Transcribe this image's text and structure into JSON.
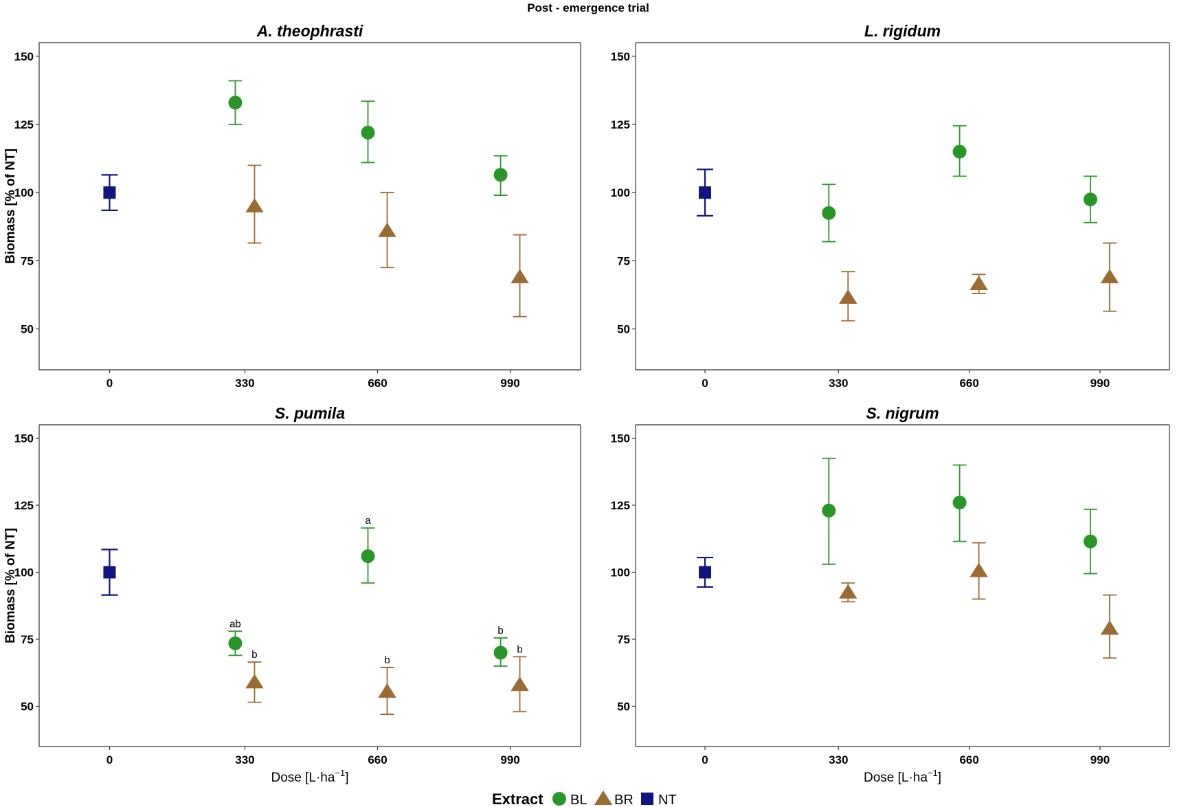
{
  "figure": {
    "title": "Post - emergence trial",
    "x_axis_label": "Dose",
    "x_axis_unit": "[L·ha",
    "x_axis_unit_exp": "−1",
    "x_axis_unit_close": "]",
    "y_axis_label": "Biomass [% of NT]"
  },
  "legend": {
    "title": "Extract",
    "items": [
      {
        "label": "BL",
        "shape": "circle",
        "color": "#2a9629"
      },
      {
        "label": "BR",
        "shape": "triangle",
        "color": "#9a6b33"
      },
      {
        "label": "NT",
        "shape": "square",
        "color": "#10157f"
      }
    ]
  },
  "chart_data": [
    {
      "type": "scatter",
      "title": "A. theophrasti",
      "categories": [
        "0",
        "330",
        "660",
        "990"
      ],
      "ylim": [
        35,
        155
      ],
      "yticks": [
        50,
        75,
        100,
        125,
        150
      ],
      "series": [
        {
          "name": "NT",
          "points": [
            {
              "x": "0",
              "y": 100,
              "lo": 93.5,
              "hi": 106.5
            }
          ]
        },
        {
          "name": "BL",
          "points": [
            {
              "x": "330",
              "y": 133,
              "lo": 125,
              "hi": 141
            },
            {
              "x": "660",
              "y": 122,
              "lo": 111,
              "hi": 133.5
            },
            {
              "x": "990",
              "y": 106.5,
              "lo": 99,
              "hi": 113.5
            }
          ]
        },
        {
          "name": "BR",
          "points": [
            {
              "x": "330",
              "y": 95,
              "lo": 81.5,
              "hi": 110
            },
            {
              "x": "660",
              "y": 86,
              "lo": 72.5,
              "hi": 100
            },
            {
              "x": "990",
              "y": 69,
              "lo": 54.5,
              "hi": 84.5
            }
          ]
        }
      ]
    },
    {
      "type": "scatter",
      "title": "L. rigidum",
      "categories": [
        "0",
        "330",
        "660",
        "990"
      ],
      "ylim": [
        35,
        155
      ],
      "yticks": [
        50,
        75,
        100,
        125,
        150
      ],
      "series": [
        {
          "name": "NT",
          "points": [
            {
              "x": "0",
              "y": 100,
              "lo": 91.5,
              "hi": 108.5
            }
          ]
        },
        {
          "name": "BL",
          "points": [
            {
              "x": "330",
              "y": 92.5,
              "lo": 82,
              "hi": 103
            },
            {
              "x": "660",
              "y": 115,
              "lo": 106,
              "hi": 124.5
            },
            {
              "x": "990",
              "y": 97.5,
              "lo": 89,
              "hi": 106
            }
          ]
        },
        {
          "name": "BR",
          "points": [
            {
              "x": "330",
              "y": 61.5,
              "lo": 53,
              "hi": 71
            },
            {
              "x": "660",
              "y": 66.5,
              "lo": 63,
              "hi": 70
            },
            {
              "x": "990",
              "y": 69,
              "lo": 56.5,
              "hi": 81.5
            }
          ]
        }
      ]
    },
    {
      "type": "scatter",
      "title": "S. pumila",
      "categories": [
        "0",
        "330",
        "660",
        "990"
      ],
      "ylim": [
        35,
        155
      ],
      "yticks": [
        50,
        75,
        100,
        125,
        150
      ],
      "series": [
        {
          "name": "NT",
          "points": [
            {
              "x": "0",
              "y": 100,
              "lo": 91.5,
              "hi": 108.5
            }
          ]
        },
        {
          "name": "BL",
          "points": [
            {
              "x": "330",
              "y": 73.5,
              "lo": 69,
              "hi": 78,
              "sig": "ab"
            },
            {
              "x": "660",
              "y": 106,
              "lo": 96,
              "hi": 116.5,
              "sig": "a"
            },
            {
              "x": "990",
              "y": 70,
              "lo": 65,
              "hi": 75.5,
              "sig": "b"
            }
          ]
        },
        {
          "name": "BR",
          "points": [
            {
              "x": "330",
              "y": 59,
              "lo": 51.5,
              "hi": 66.5,
              "sig": "b"
            },
            {
              "x": "660",
              "y": 55.5,
              "lo": 47,
              "hi": 64.5,
              "sig": "b"
            },
            {
              "x": "990",
              "y": 58,
              "lo": 48,
              "hi": 68.5,
              "sig": "b"
            }
          ]
        }
      ]
    },
    {
      "type": "scatter",
      "title": "S. nigrum",
      "categories": [
        "0",
        "330",
        "660",
        "990"
      ],
      "ylim": [
        35,
        155
      ],
      "yticks": [
        50,
        75,
        100,
        125,
        150
      ],
      "series": [
        {
          "name": "NT",
          "points": [
            {
              "x": "0",
              "y": 100,
              "lo": 94.5,
              "hi": 105.5
            }
          ]
        },
        {
          "name": "BL",
          "points": [
            {
              "x": "330",
              "y": 123,
              "lo": 103,
              "hi": 142.5
            },
            {
              "x": "660",
              "y": 126,
              "lo": 111.5,
              "hi": 140
            },
            {
              "x": "990",
              "y": 111.5,
              "lo": 99.5,
              "hi": 123.5
            }
          ]
        },
        {
          "name": "BR",
          "points": [
            {
              "x": "330",
              "y": 92.5,
              "lo": 89,
              "hi": 96
            },
            {
              "x": "660",
              "y": 100.5,
              "lo": 90,
              "hi": 111
            },
            {
              "x": "990",
              "y": 79,
              "lo": 68,
              "hi": 91.5
            }
          ]
        }
      ]
    }
  ]
}
